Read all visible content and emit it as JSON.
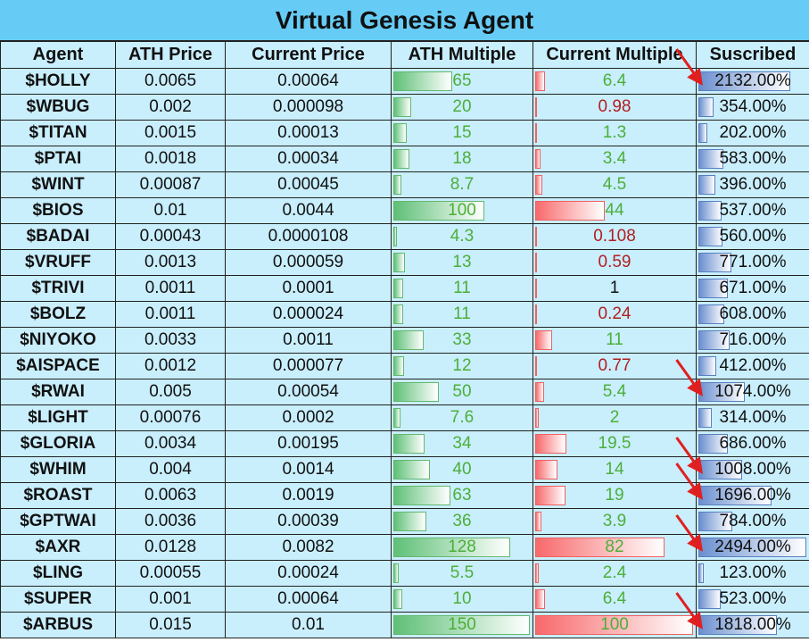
{
  "title": "Virtual Genesis Agent",
  "headers": [
    "Agent",
    "ATH Price",
    "Current Price",
    "ATH Multiple",
    "Current Multiple",
    "Suscribed"
  ],
  "max_values": {
    "ath_multiple": 150,
    "current_multiple": 100,
    "subscribed": 2494
  },
  "colors": {
    "title_bg": "#66ccf5",
    "cell_bg": "#c9eefc",
    "green": "#4caf3a",
    "red": "#b21f1f",
    "arrow": "#e02020"
  },
  "rows": [
    {
      "agent": "$HOLLY",
      "ath_price": "0.0065",
      "current_price": "0.00064",
      "ath_multiple": "65",
      "current_multiple": "6.4",
      "subscribed": "2132.00%",
      "ath_val": 65,
      "cur_val": 6.4,
      "sub_val": 2132,
      "cur_color": "green"
    },
    {
      "agent": "$WBUG",
      "ath_price": "0.002",
      "current_price": "0.000098",
      "ath_multiple": "20",
      "current_multiple": "0.98",
      "subscribed": "354.00%",
      "ath_val": 20,
      "cur_val": 0.98,
      "sub_val": 354,
      "cur_color": "red"
    },
    {
      "agent": "$TITAN",
      "ath_price": "0.0015",
      "current_price": "0.00013",
      "ath_multiple": "15",
      "current_multiple": "1.3",
      "subscribed": "202.00%",
      "ath_val": 15,
      "cur_val": 1.3,
      "sub_val": 202,
      "cur_color": "green"
    },
    {
      "agent": "$PTAI",
      "ath_price": "0.0018",
      "current_price": "0.00034",
      "ath_multiple": "18",
      "current_multiple": "3.4",
      "subscribed": "583.00%",
      "ath_val": 18,
      "cur_val": 3.4,
      "sub_val": 583,
      "cur_color": "green"
    },
    {
      "agent": "$WINT",
      "ath_price": "0.00087",
      "current_price": "0.00045",
      "ath_multiple": "8.7",
      "current_multiple": "4.5",
      "subscribed": "396.00%",
      "ath_val": 8.7,
      "cur_val": 4.5,
      "sub_val": 396,
      "cur_color": "green"
    },
    {
      "agent": "$BIOS",
      "ath_price": "0.01",
      "current_price": "0.0044",
      "ath_multiple": "100",
      "current_multiple": "44",
      "subscribed": "537.00%",
      "ath_val": 100,
      "cur_val": 44,
      "sub_val": 537,
      "cur_color": "green"
    },
    {
      "agent": "$BADAI",
      "ath_price": "0.00043",
      "current_price": "0.0000108",
      "ath_multiple": "4.3",
      "current_multiple": "0.108",
      "subscribed": "560.00%",
      "ath_val": 4.3,
      "cur_val": 0.108,
      "sub_val": 560,
      "cur_color": "red"
    },
    {
      "agent": "$VRUFF",
      "ath_price": "0.0013",
      "current_price": "0.000059",
      "ath_multiple": "13",
      "current_multiple": "0.59",
      "subscribed": "771.00%",
      "ath_val": 13,
      "cur_val": 0.59,
      "sub_val": 771,
      "cur_color": "red"
    },
    {
      "agent": "$TRIVI",
      "ath_price": "0.0011",
      "current_price": "0.0001",
      "ath_multiple": "11",
      "current_multiple": "1",
      "subscribed": "671.00%",
      "ath_val": 11,
      "cur_val": 1,
      "sub_val": 671,
      "cur_color": "black"
    },
    {
      "agent": "$BOLZ",
      "ath_price": "0.0011",
      "current_price": "0.000024",
      "ath_multiple": "11",
      "current_multiple": "0.24",
      "subscribed": "608.00%",
      "ath_val": 11,
      "cur_val": 0.24,
      "sub_val": 608,
      "cur_color": "red"
    },
    {
      "agent": "$NIYOKO",
      "ath_price": "0.0033",
      "current_price": "0.0011",
      "ath_multiple": "33",
      "current_multiple": "11",
      "subscribed": "716.00%",
      "ath_val": 33,
      "cur_val": 11,
      "sub_val": 716,
      "cur_color": "green"
    },
    {
      "agent": "$AISPACE",
      "ath_price": "0.0012",
      "current_price": "0.000077",
      "ath_multiple": "12",
      "current_multiple": "0.77",
      "subscribed": "412.00%",
      "ath_val": 12,
      "cur_val": 0.77,
      "sub_val": 412,
      "cur_color": "red"
    },
    {
      "agent": "$RWAI",
      "ath_price": "0.005",
      "current_price": "0.00054",
      "ath_multiple": "50",
      "current_multiple": "5.4",
      "subscribed": "1074.00%",
      "ath_val": 50,
      "cur_val": 5.4,
      "sub_val": 1074,
      "cur_color": "green"
    },
    {
      "agent": "$LIGHT",
      "ath_price": "0.00076",
      "current_price": "0.0002",
      "ath_multiple": "7.6",
      "current_multiple": "2",
      "subscribed": "314.00%",
      "ath_val": 7.6,
      "cur_val": 2,
      "sub_val": 314,
      "cur_color": "green"
    },
    {
      "agent": "$GLORIA",
      "ath_price": "0.0034",
      "current_price": "0.00195",
      "ath_multiple": "34",
      "current_multiple": "19.5",
      "subscribed": "686.00%",
      "ath_val": 34,
      "cur_val": 19.5,
      "sub_val": 686,
      "cur_color": "green"
    },
    {
      "agent": "$WHIM",
      "ath_price": "0.004",
      "current_price": "0.0014",
      "ath_multiple": "40",
      "current_multiple": "14",
      "subscribed": "1008.00%",
      "ath_val": 40,
      "cur_val": 14,
      "sub_val": 1008,
      "cur_color": "green"
    },
    {
      "agent": "$ROAST",
      "ath_price": "0.0063",
      "current_price": "0.0019",
      "ath_multiple": "63",
      "current_multiple": "19",
      "subscribed": "1696.00%",
      "ath_val": 63,
      "cur_val": 19,
      "sub_val": 1696,
      "cur_color": "green"
    },
    {
      "agent": "$GPTWAI",
      "ath_price": "0.0036",
      "current_price": "0.00039",
      "ath_multiple": "36",
      "current_multiple": "3.9",
      "subscribed": "784.00%",
      "ath_val": 36,
      "cur_val": 3.9,
      "sub_val": 784,
      "cur_color": "green"
    },
    {
      "agent": "$AXR",
      "ath_price": "0.0128",
      "current_price": "0.0082",
      "ath_multiple": "128",
      "current_multiple": "82",
      "subscribed": "2494.00%",
      "ath_val": 128,
      "cur_val": 82,
      "sub_val": 2494,
      "cur_color": "green"
    },
    {
      "agent": "$LING",
      "ath_price": "0.00055",
      "current_price": "0.00024",
      "ath_multiple": "5.5",
      "current_multiple": "2.4",
      "subscribed": "123.00%",
      "ath_val": 5.5,
      "cur_val": 2.4,
      "sub_val": 123,
      "cur_color": "green"
    },
    {
      "agent": "$SUPER",
      "ath_price": "0.001",
      "current_price": "0.00064",
      "ath_multiple": "10",
      "current_multiple": "6.4",
      "subscribed": "523.00%",
      "ath_val": 10,
      "cur_val": 6.4,
      "sub_val": 523,
      "cur_color": "green"
    },
    {
      "agent": "$ARBUS",
      "ath_price": "0.015",
      "current_price": "0.01",
      "ath_multiple": "150",
      "current_multiple": "100",
      "subscribed": "1818.00%",
      "ath_val": 150,
      "cur_val": 100,
      "sub_val": 1818,
      "cur_color": "green"
    }
  ],
  "arrow_rows": [
    0,
    12,
    15,
    16,
    18,
    21
  ]
}
